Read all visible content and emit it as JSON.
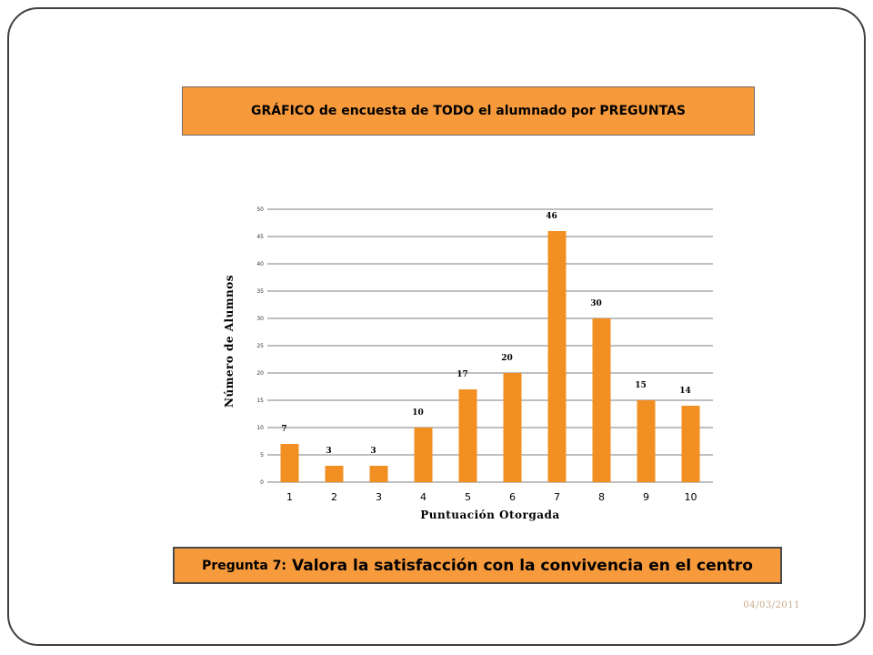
{
  "header": {
    "title": "GRÁFICO de encuesta de TODO  el alumnado por PREGUNTAS"
  },
  "question": {
    "prefix": "Pregunta 7:",
    "text": "Valora la satisfacción con la convivencia en el centro"
  },
  "footer": {
    "date": "04/03/2011"
  },
  "colors": {
    "bar": "#f28f22",
    "box": "#f79a3c",
    "grid": "#000000"
  },
  "chart_data": {
    "type": "bar",
    "categories": [
      "1",
      "2",
      "3",
      "4",
      "5",
      "6",
      "7",
      "8",
      "9",
      "10"
    ],
    "values": [
      7,
      3,
      3,
      10,
      17,
      20,
      46,
      30,
      15,
      14
    ],
    "data_labels": [
      "7",
      "3",
      "3",
      "10",
      "17",
      "20",
      "46",
      "30",
      "15",
      "14"
    ],
    "xlabel": "Puntuación Otorgada",
    "ylabel": "Número de Alumnos",
    "ylim": [
      0,
      50
    ],
    "yticks": [
      "0",
      "5",
      "10",
      "15",
      "20",
      "25",
      "30",
      "35",
      "40",
      "45",
      "50"
    ],
    "grid": true,
    "legend": "none"
  }
}
